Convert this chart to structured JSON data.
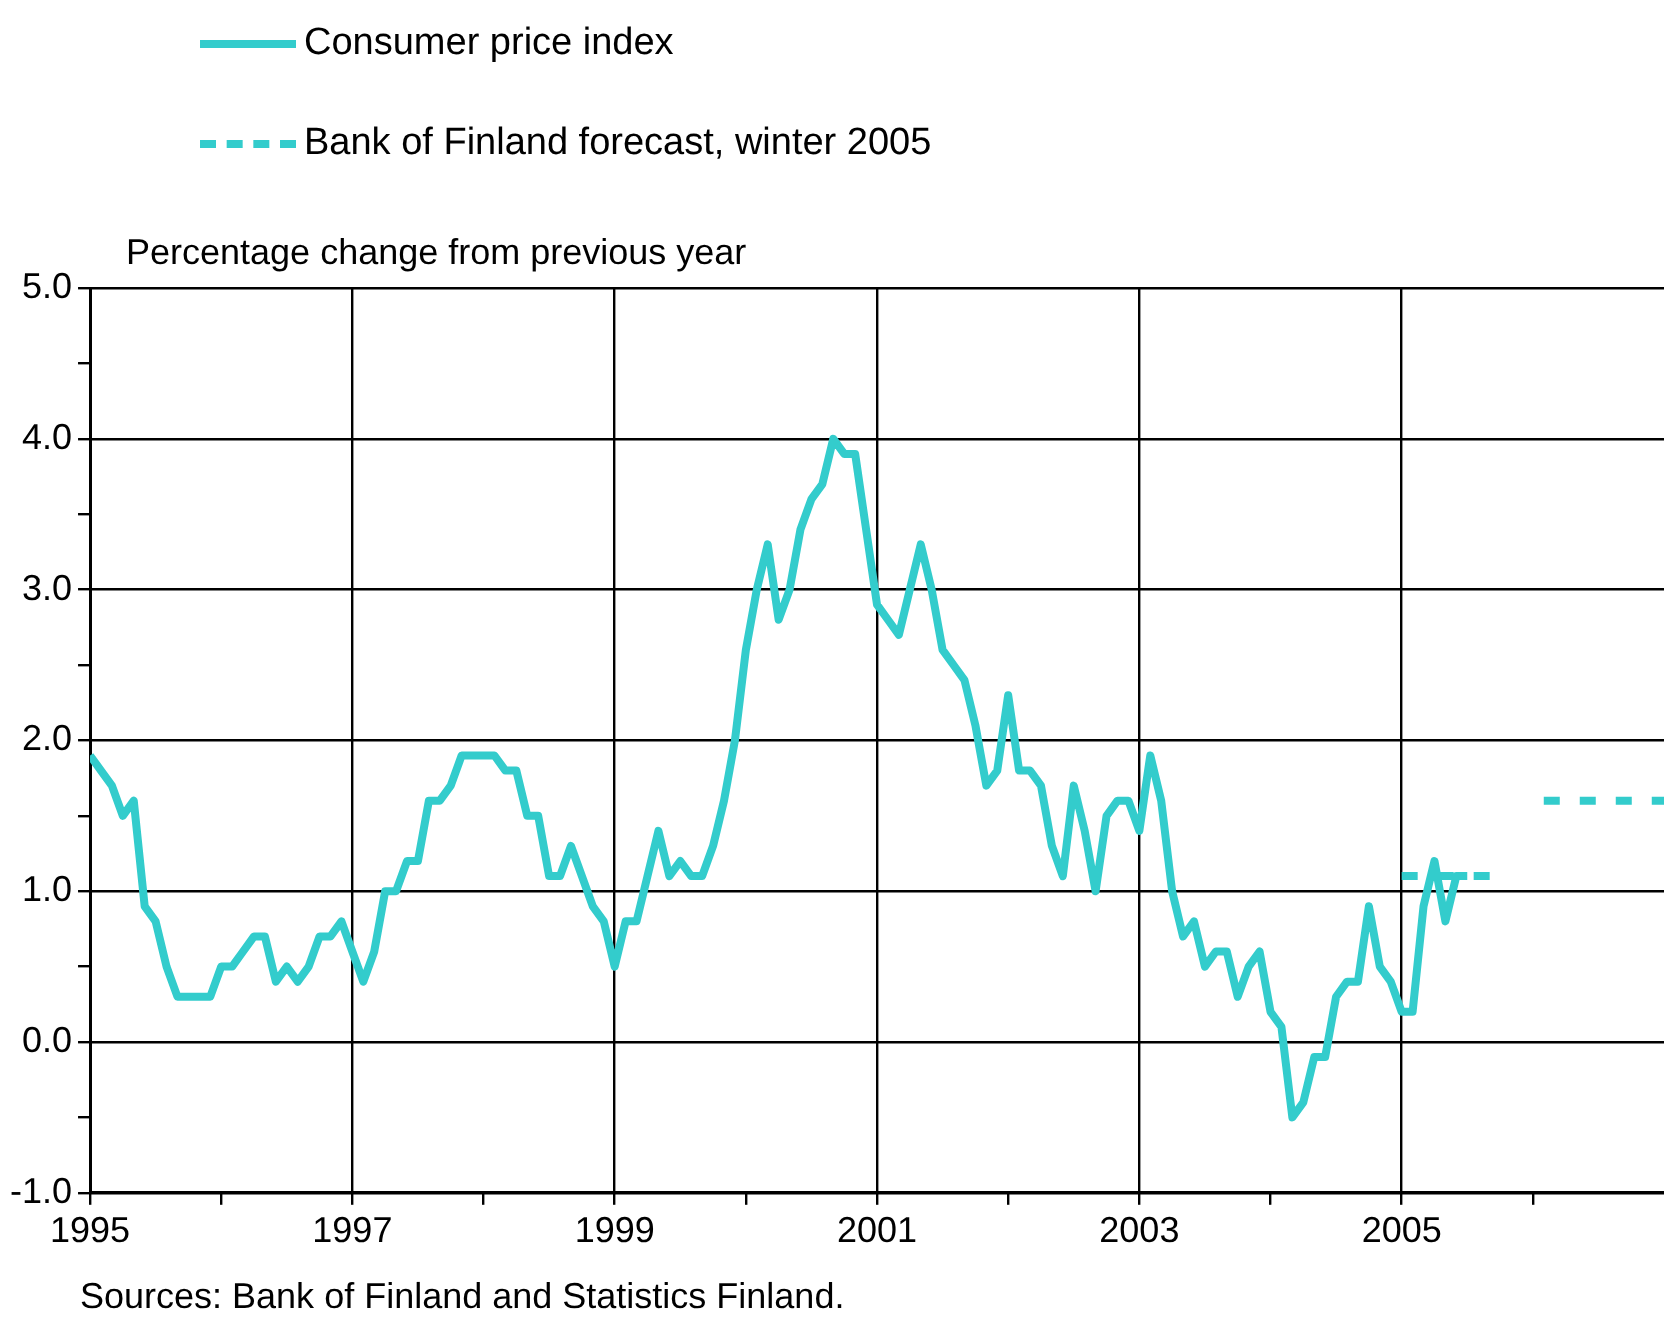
{
  "chart_data": {
    "type": "line",
    "ylabel": "Percentage change from previous year",
    "xlim": [
      "1995",
      "2007"
    ],
    "xticks": [
      "1995",
      {
        "value": "1996",
        "label": null
      },
      "1997",
      {
        "value": "1998",
        "label": null
      },
      "1999",
      {
        "value": "2000",
        "label": null
      },
      "2001",
      {
        "value": "2002",
        "label": null
      },
      "2003",
      {
        "value": "2004",
        "label": null
      },
      "2005",
      {
        "value": "2006",
        "label": null
      }
    ],
    "ylim": [
      -1,
      5
    ],
    "yticks": [
      {
        "value": -1,
        "label": "-1.0"
      },
      {
        "value": -0.5,
        "label": null
      },
      {
        "value": 0,
        "label": "0.0"
      },
      {
        "value": 0.5,
        "label": null
      },
      {
        "value": 1,
        "label": "1.0"
      },
      {
        "value": 1.5,
        "label": null
      },
      {
        "value": 2,
        "label": "2.0"
      },
      {
        "value": 2.5,
        "label": null
      },
      {
        "value": 3,
        "label": "3.0"
      },
      {
        "value": 3.5,
        "label": null
      },
      {
        "value": 4,
        "label": "4.0"
      },
      {
        "value": 4.5,
        "label": null
      },
      {
        "value": 5,
        "label": "5.0"
      }
    ],
    "grid": true,
    "legend": "top left",
    "marker": "none",
    "series": [
      {
        "name": "Consumer price index",
        "color": "#33cccc",
        "line_style": "solid",
        "x": [
          "1995-01",
          "1995-02",
          "1995-03",
          "1995-04",
          "1995-05",
          "1995-06",
          "1995-07",
          "1995-08",
          "1995-09",
          "1995-10",
          "1995-11",
          "1995-12",
          "1996-01",
          "1996-02",
          "1996-03",
          "1996-04",
          "1996-05",
          "1996-06",
          "1996-07",
          "1996-08",
          "1996-09",
          "1996-10",
          "1996-11",
          "1996-12",
          "1997-01",
          "1997-02",
          "1997-03",
          "1997-04",
          "1997-05",
          "1997-06",
          "1997-07",
          "1997-08",
          "1997-09",
          "1997-10",
          "1997-11",
          "1997-12",
          "1998-01",
          "1998-02",
          "1998-03",
          "1998-04",
          "1998-05",
          "1998-06",
          "1998-07",
          "1998-08",
          "1998-09",
          "1998-10",
          "1998-11",
          "1998-12",
          "1999-01",
          "1999-02",
          "1999-03",
          "1999-04",
          "1999-05",
          "1999-06",
          "1999-07",
          "1999-08",
          "1999-09",
          "1999-10",
          "1999-11",
          "1999-12",
          "2000-01",
          "2000-02",
          "2000-03",
          "2000-04",
          "2000-05",
          "2000-06",
          "2000-07",
          "2000-08",
          "2000-09",
          "2000-10",
          "2000-11",
          "2000-12",
          "2001-01",
          "2001-02",
          "2001-03",
          "2001-04",
          "2001-05",
          "2001-06",
          "2001-07",
          "2001-08",
          "2001-09",
          "2001-10",
          "2001-11",
          "2001-12",
          "2002-01",
          "2002-02",
          "2002-03",
          "2002-04",
          "2002-05",
          "2002-06",
          "2002-07",
          "2002-08",
          "2002-09",
          "2002-10",
          "2002-11",
          "2002-12",
          "2003-01",
          "2003-02",
          "2003-03",
          "2003-04",
          "2003-05",
          "2003-06",
          "2003-07",
          "2003-08",
          "2003-09",
          "2003-10",
          "2003-11",
          "2003-12",
          "2004-01",
          "2004-02",
          "2004-03",
          "2004-04",
          "2004-05",
          "2004-06",
          "2004-07",
          "2004-08",
          "2004-09",
          "2004-10",
          "2004-11",
          "2004-12",
          "2005-01",
          "2005-02",
          "2005-03",
          "2005-04",
          "2005-05",
          "2005-06",
          "2005-07"
        ],
        "values": [
          1.9,
          1.8,
          1.7,
          1.5,
          1.6,
          0.9,
          0.8,
          0.5,
          0.3,
          0.3,
          0.3,
          0.3,
          0.5,
          0.5,
          0.6,
          0.7,
          0.7,
          0.4,
          0.5,
          0.4,
          0.5,
          0.7,
          0.7,
          0.8,
          0.6,
          0.4,
          0.6,
          1.0,
          1.0,
          1.2,
          1.2,
          1.6,
          1.6,
          1.7,
          1.9,
          1.9,
          1.9,
          1.9,
          1.8,
          1.8,
          1.5,
          1.5,
          1.1,
          1.1,
          1.3,
          1.1,
          0.9,
          0.8,
          0.5,
          0.8,
          0.8,
          1.1,
          1.4,
          1.1,
          1.2,
          1.1,
          1.1,
          1.3,
          1.6,
          2.0,
          2.6,
          3.0,
          3.3,
          2.8,
          3.0,
          3.4,
          3.6,
          3.7,
          4.0,
          3.9,
          3.9,
          3.4,
          2.9,
          2.8,
          2.7,
          3.0,
          3.3,
          3.0,
          2.6,
          2.5,
          2.4,
          2.1,
          1.7,
          1.8,
          2.3,
          1.8,
          1.8,
          1.7,
          1.3,
          1.1,
          1.7,
          1.4,
          1.0,
          1.5,
          1.6,
          1.6,
          1.4,
          1.9,
          1.6,
          1.0,
          0.7,
          0.8,
          0.5,
          0.6,
          0.6,
          0.3,
          0.5,
          0.6,
          0.2,
          0.1,
          -0.5,
          -0.4,
          -0.1,
          -0.1,
          0.3,
          0.4,
          0.4,
          0.9,
          0.5,
          0.4,
          0.2,
          0.2,
          0.9,
          1.2,
          0.8,
          1.1,
          1.1
        ]
      },
      {
        "name": "Bank of Finland forecast, winter 2005",
        "color": "#33cccc",
        "line_style": "dashed",
        "x": [
          "2005-01",
          "2005-10",
          "2005-11",
          "2006-02",
          "2007-01"
        ],
        "values": [
          1.1,
          1.1,
          null,
          1.6,
          1.6
        ]
      }
    ],
    "annotations": [
      "Sources: Bank of Finland and Statistics Finland."
    ]
  }
}
